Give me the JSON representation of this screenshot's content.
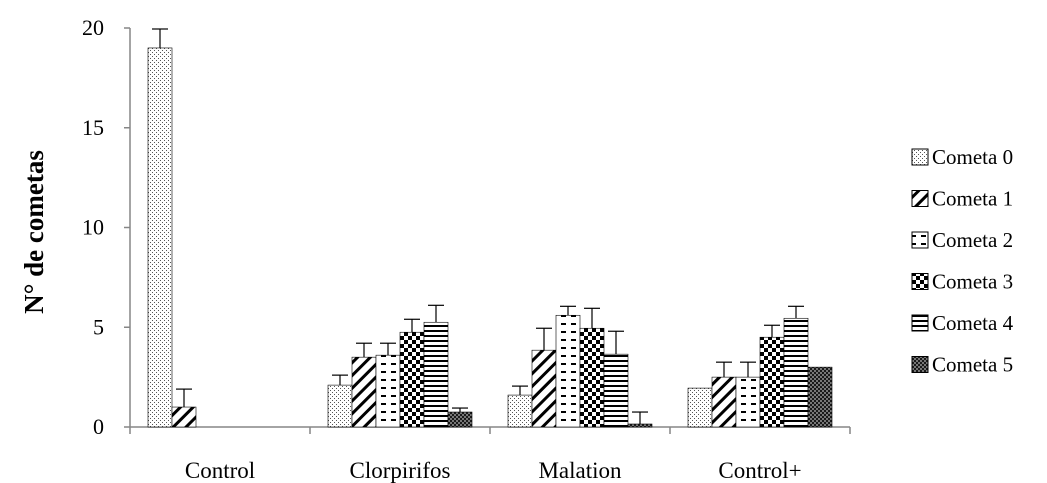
{
  "chart_data": {
    "type": "bar",
    "title": "",
    "xlabel": "",
    "ylabel": "N° de cometas",
    "ylim": [
      0,
      20
    ],
    "yticks": [
      0,
      5,
      10,
      15,
      20
    ],
    "grid": false,
    "legend_position": "right",
    "categories": [
      "Control",
      "Clorpirifos",
      "Malation",
      "Control+"
    ],
    "series": [
      {
        "name": "Cometa 0",
        "pattern": "dots",
        "values": [
          19.0,
          2.1,
          1.6,
          1.95
        ],
        "errors": [
          0.95,
          0.5,
          0.45,
          0
        ]
      },
      {
        "name": "Cometa 1",
        "pattern": "diagonal",
        "values": [
          1.0,
          3.5,
          3.85,
          2.5
        ],
        "errors": [
          0.9,
          0.7,
          1.1,
          0.75
        ]
      },
      {
        "name": "Cometa 2",
        "pattern": "dashes",
        "values": [
          0,
          3.6,
          5.6,
          2.5
        ],
        "errors": [
          0,
          0.6,
          0.45,
          0.75
        ]
      },
      {
        "name": "Cometa 3",
        "pattern": "checker",
        "values": [
          0,
          4.75,
          4.95,
          4.5
        ],
        "errors": [
          0,
          0.65,
          1.0,
          0.6
        ]
      },
      {
        "name": "Cometa 4",
        "pattern": "hlines",
        "values": [
          0,
          5.25,
          3.65,
          5.45
        ],
        "errors": [
          0,
          0.85,
          1.15,
          0.6
        ]
      },
      {
        "name": "Cometa 5",
        "pattern": "darkchecker",
        "values": [
          0,
          0.75,
          0.15,
          3.0
        ],
        "errors": [
          0,
          0.2,
          0.6,
          0
        ]
      }
    ]
  }
}
